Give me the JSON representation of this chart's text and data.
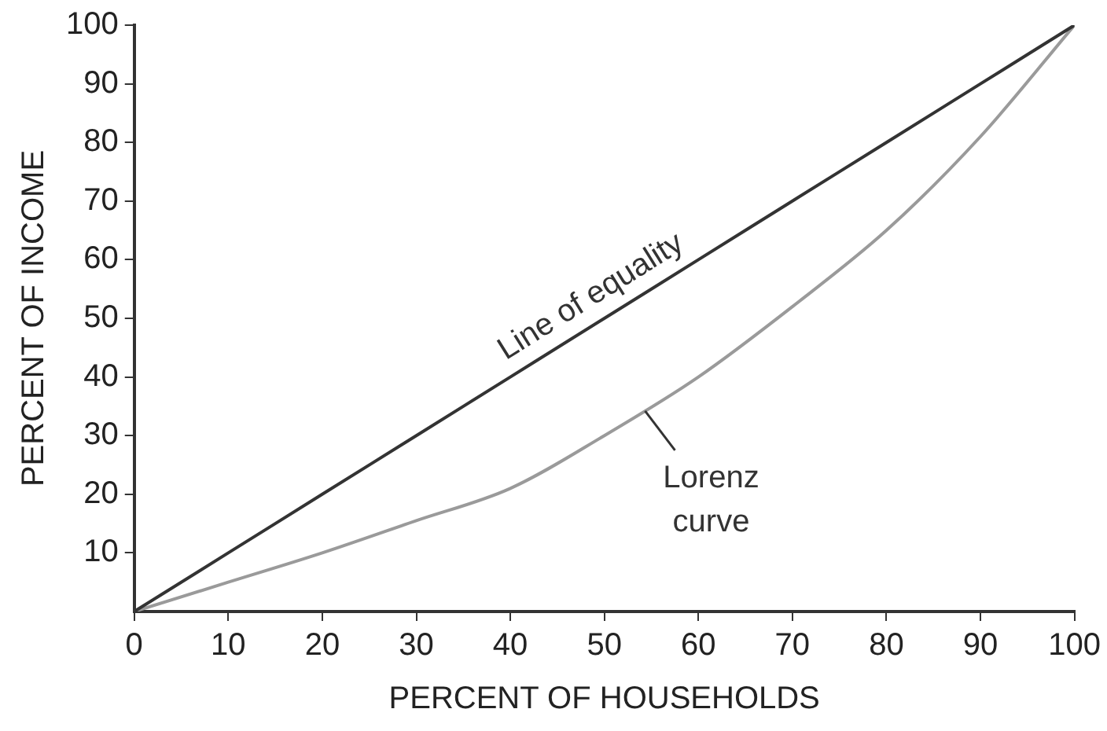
{
  "chart_data": {
    "type": "line",
    "xlabel": "PERCENT OF HOUSEHOLDS",
    "ylabel": "PERCENT OF INCOME",
    "x": [
      0,
      10,
      20,
      30,
      40,
      50,
      60,
      70,
      80,
      90,
      100
    ],
    "series": [
      {
        "color": "#333333",
        "values": [
          0,
          10,
          20,
          30,
          40,
          50,
          60,
          70,
          80,
          90,
          100
        ]
      },
      {
        "color": "#9a9a9a",
        "values": [
          0,
          5,
          10,
          15.5,
          21,
          30,
          40,
          52,
          65,
          81,
          100
        ]
      }
    ],
    "xlim": [
      0,
      100
    ],
    "xticks": [
      0,
      10,
      20,
      30,
      40,
      50,
      60,
      70,
      80,
      90,
      100
    ],
    "ylim": [
      0,
      100
    ],
    "yticks": [
      10,
      20,
      30,
      40,
      50,
      60,
      70,
      80,
      90,
      100
    ],
    "annotations": [
      {
        "text": "Line of equality",
        "x": 50,
        "y": 50
      },
      {
        "text": "Lorenz curve",
        "x": 54,
        "y": 35
      }
    ],
    "grid": false,
    "legend": false,
    "marker": "none"
  }
}
